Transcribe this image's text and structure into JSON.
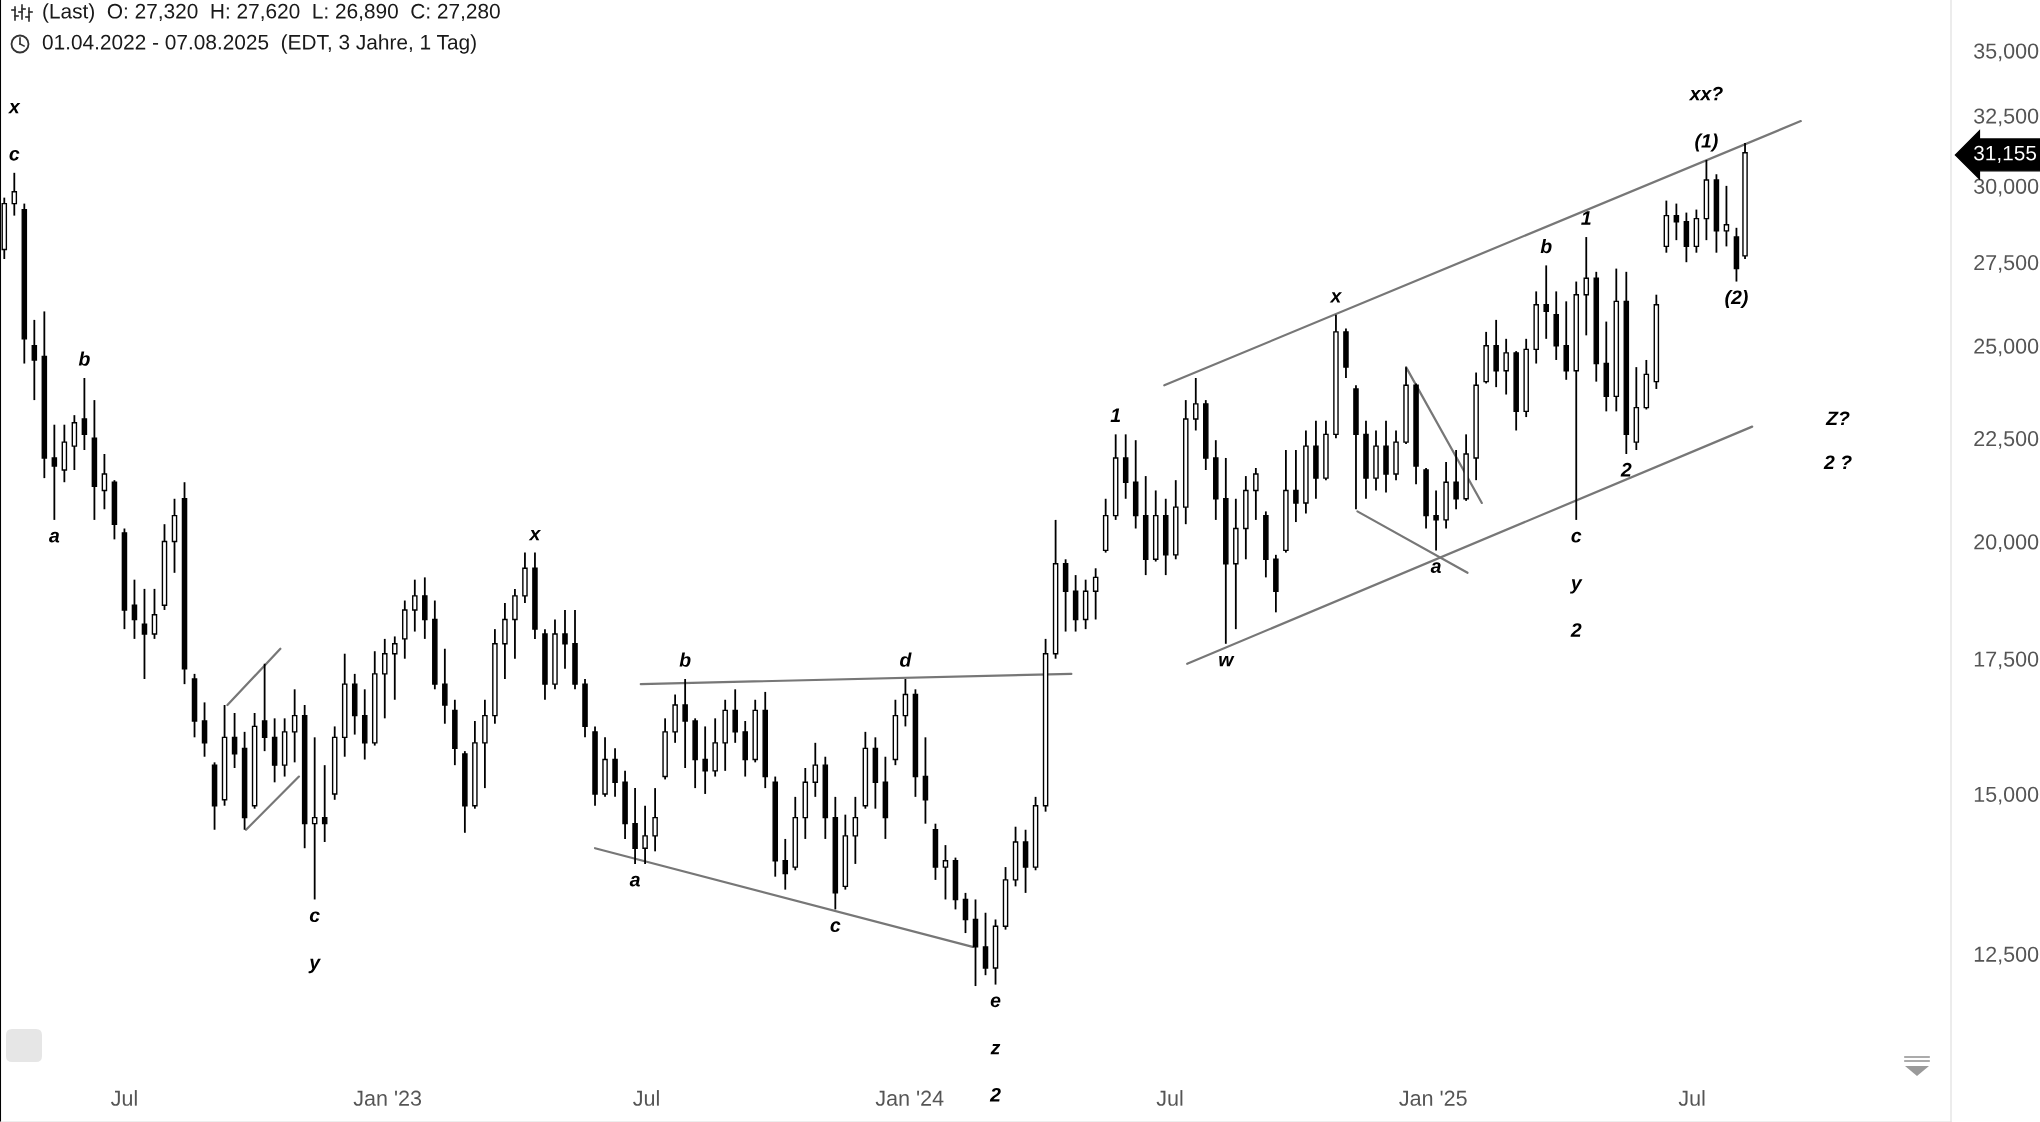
{
  "chart_data": {
    "type": "candlestick",
    "title": "(Last)  O: 27,320  H: 27,620  L: 26,890  C: 27,280",
    "subtitle": "01.04.2022 - 07.08.2025  (EDT, 3 Jahre, 1 Tag)",
    "color": "#000000",
    "log": true,
    "xlim": [
      "2022-04-05",
      "2025-12-29"
    ],
    "ylim": [
      10320,
      37080
    ],
    "xticks": [
      {
        "value": "2022-07-01",
        "label": "Jul"
      },
      {
        "value": "2023-01-01",
        "label": "Jan '23"
      },
      {
        "value": "2023-07-01",
        "label": "Jul"
      },
      {
        "value": "2024-01-01",
        "label": "Jan '24"
      },
      {
        "value": "2024-07-01",
        "label": "Jul"
      },
      {
        "value": "2025-01-01",
        "label": "Jan '25"
      },
      {
        "value": "2025-07-01",
        "label": "Jul"
      }
    ],
    "yticks": [
      {
        "value": 12500,
        "label": "12,500"
      },
      {
        "value": 15000,
        "label": "15,000"
      },
      {
        "value": 17500,
        "label": "17,500"
      },
      {
        "value": 20000,
        "label": "20,000"
      },
      {
        "value": 22500,
        "label": "22,500"
      },
      {
        "value": 25000,
        "label": "25,000"
      },
      {
        "value": 27500,
        "label": "27,500"
      },
      {
        "value": 30000,
        "label": "30,000"
      },
      {
        "value": 31155,
        "label": "31,155"
      },
      {
        "value": 32500,
        "label": "32,500"
      },
      {
        "value": 35000,
        "label": "35,000"
      }
    ],
    "x": [
      "2022-04-08",
      "2022-04-15",
      "2022-04-22",
      "2022-04-29",
      "2022-05-06",
      "2022-05-13",
      "2022-05-20",
      "2022-05-27",
      "2022-06-03",
      "2022-06-10",
      "2022-06-17",
      "2022-06-24",
      "2022-07-01",
      "2022-07-08",
      "2022-07-15",
      "2022-07-22",
      "2022-07-29",
      "2022-08-05",
      "2022-08-12",
      "2022-08-19",
      "2022-08-26",
      "2022-09-02",
      "2022-09-09",
      "2022-09-16",
      "2022-09-23",
      "2022-09-30",
      "2022-10-07",
      "2022-10-14",
      "2022-10-21",
      "2022-10-28",
      "2022-11-04",
      "2022-11-11",
      "2022-11-18",
      "2022-11-25",
      "2022-12-02",
      "2022-12-09",
      "2022-12-16",
      "2022-12-23",
      "2022-12-30",
      "2023-01-06",
      "2023-01-13",
      "2023-01-20",
      "2023-01-27",
      "2023-02-03",
      "2023-02-10",
      "2023-02-17",
      "2023-02-24",
      "2023-03-03",
      "2023-03-10",
      "2023-03-17",
      "2023-03-24",
      "2023-03-31",
      "2023-04-07",
      "2023-04-14",
      "2023-04-21",
      "2023-04-28",
      "2023-05-05",
      "2023-05-12",
      "2023-05-19",
      "2023-05-26",
      "2023-06-02",
      "2023-06-09",
      "2023-06-16",
      "2023-06-23",
      "2023-06-30",
      "2023-07-07",
      "2023-07-14",
      "2023-07-21",
      "2023-07-28",
      "2023-08-04",
      "2023-08-11",
      "2023-08-18",
      "2023-08-25",
      "2023-09-01",
      "2023-09-08",
      "2023-09-15",
      "2023-09-22",
      "2023-09-29",
      "2023-10-06",
      "2023-10-13",
      "2023-10-20",
      "2023-10-27",
      "2023-11-03",
      "2023-11-10",
      "2023-11-17",
      "2023-11-24",
      "2023-12-01",
      "2023-12-08",
      "2023-12-15",
      "2023-12-22",
      "2023-12-29",
      "2024-01-05",
      "2024-01-12",
      "2024-01-19",
      "2024-01-26",
      "2024-02-02",
      "2024-02-09",
      "2024-02-16",
      "2024-02-23",
      "2024-03-01",
      "2024-03-08",
      "2024-03-15",
      "2024-03-22",
      "2024-03-29",
      "2024-04-05",
      "2024-04-12",
      "2024-04-19",
      "2024-04-26",
      "2024-05-03",
      "2024-05-10",
      "2024-05-17",
      "2024-05-24",
      "2024-05-31",
      "2024-06-07",
      "2024-06-14",
      "2024-06-21",
      "2024-06-28",
      "2024-07-05",
      "2024-07-12",
      "2024-07-19",
      "2024-07-26",
      "2024-08-02",
      "2024-08-09",
      "2024-08-16",
      "2024-08-23",
      "2024-08-30",
      "2024-09-06",
      "2024-09-13",
      "2024-09-20",
      "2024-09-27",
      "2024-10-04",
      "2024-10-11",
      "2024-10-18",
      "2024-10-25",
      "2024-11-01",
      "2024-11-08",
      "2024-11-15",
      "2024-11-22",
      "2024-11-29",
      "2024-12-06",
      "2024-12-13",
      "2024-12-20",
      "2024-12-27",
      "2025-01-03",
      "2025-01-10",
      "2025-01-17",
      "2025-01-24",
      "2025-01-31",
      "2025-02-07",
      "2025-02-14",
      "2025-02-21",
      "2025-02-28",
      "2025-03-07",
      "2025-03-14",
      "2025-03-21",
      "2025-03-28",
      "2025-04-04",
      "2025-04-11",
      "2025-04-18",
      "2025-04-25",
      "2025-05-02",
      "2025-05-09",
      "2025-05-16",
      "2025-05-23",
      "2025-05-30",
      "2025-06-06",
      "2025-06-13",
      "2025-06-20",
      "2025-06-27",
      "2025-07-04",
      "2025-07-11",
      "2025-07-18",
      "2025-07-25",
      "2025-08-01",
      "2025-08-07"
    ],
    "ohlc": [
      [
        27900,
        29600,
        27600,
        29400
      ],
      [
        29400,
        30450,
        29000,
        29800
      ],
      [
        29200,
        29400,
        24500,
        25200
      ],
      [
        25000,
        25750,
        23500,
        24600
      ],
      [
        24700,
        26000,
        21500,
        22000
      ],
      [
        22000,
        22850,
        20500,
        21800
      ],
      [
        21700,
        22850,
        21400,
        22400
      ],
      [
        22300,
        23100,
        21700,
        22900
      ],
      [
        23000,
        24100,
        22200,
        22600
      ],
      [
        22500,
        23500,
        20500,
        21300
      ],
      [
        21200,
        22100,
        20750,
        21600
      ],
      [
        21400,
        21450,
        20050,
        20400
      ],
      [
        20200,
        20300,
        18100,
        18500
      ],
      [
        18600,
        19150,
        17900,
        18300
      ],
      [
        18200,
        18950,
        17100,
        18000
      ],
      [
        18000,
        18950,
        17900,
        18400
      ],
      [
        18600,
        20400,
        18500,
        20000
      ],
      [
        20000,
        21000,
        19300,
        20600
      ],
      [
        21000,
        21400,
        17000,
        17300
      ],
      [
        17100,
        17200,
        16000,
        16300
      ],
      [
        16300,
        16650,
        15650,
        15900
      ],
      [
        15500,
        15550,
        14400,
        14800
      ],
      [
        14900,
        16600,
        14800,
        16000
      ],
      [
        16000,
        16450,
        15450,
        15700
      ],
      [
        15800,
        16100,
        14400,
        14600
      ],
      [
        14800,
        16450,
        14750,
        16200
      ],
      [
        16300,
        17400,
        15750,
        16000
      ],
      [
        16000,
        16350,
        15200,
        15500
      ],
      [
        15500,
        16350,
        15300,
        16100
      ],
      [
        16100,
        16900,
        15550,
        16400
      ],
      [
        16400,
        16600,
        14100,
        14500
      ],
      [
        14500,
        16000,
        13300,
        14600
      ],
      [
        14600,
        15500,
        14200,
        14500
      ],
      [
        15000,
        16200,
        14900,
        16000
      ],
      [
        16000,
        17600,
        15650,
        17000
      ],
      [
        17000,
        17200,
        16050,
        16400
      ],
      [
        16400,
        16900,
        15600,
        15900
      ],
      [
        15900,
        17650,
        15850,
        17200
      ],
      [
        17200,
        17900,
        16350,
        17600
      ],
      [
        17600,
        17950,
        16700,
        17800
      ],
      [
        17900,
        18700,
        17500,
        18500
      ],
      [
        18500,
        19150,
        18050,
        18800
      ],
      [
        18800,
        19200,
        17900,
        18300
      ],
      [
        18300,
        18700,
        16900,
        17000
      ],
      [
        17000,
        17700,
        16250,
        16600
      ],
      [
        16500,
        16700,
        15500,
        15800
      ],
      [
        15700,
        15750,
        14350,
        14800
      ],
      [
        14800,
        16300,
        14750,
        15900
      ],
      [
        15900,
        16700,
        15100,
        16400
      ],
      [
        16400,
        18100,
        16250,
        17800
      ],
      [
        17800,
        18650,
        17100,
        18300
      ],
      [
        18300,
        18950,
        17500,
        18800
      ],
      [
        18800,
        19750,
        18650,
        19400
      ],
      [
        19400,
        19750,
        17900,
        18100
      ],
      [
        18000,
        18100,
        16700,
        17000
      ],
      [
        17000,
        18300,
        16900,
        18000
      ],
      [
        18000,
        18500,
        17300,
        17800
      ],
      [
        17800,
        18500,
        16900,
        17000
      ],
      [
        17000,
        17100,
        16000,
        16200
      ],
      [
        16100,
        16200,
        14800,
        15000
      ],
      [
        15000,
        16000,
        14950,
        15600
      ],
      [
        15600,
        15800,
        14950,
        15200
      ],
      [
        15200,
        15400,
        14250,
        14500
      ],
      [
        14500,
        15100,
        13850,
        14100
      ],
      [
        14100,
        14800,
        13850,
        14300
      ],
      [
        14300,
        15100,
        14050,
        14600
      ],
      [
        15300,
        16350,
        15250,
        16100
      ],
      [
        16100,
        16800,
        15900,
        16600
      ],
      [
        16600,
        17100,
        15450,
        16300
      ],
      [
        16300,
        16350,
        15100,
        15600
      ],
      [
        15600,
        16200,
        15000,
        15400
      ],
      [
        15400,
        16350,
        15300,
        15900
      ],
      [
        15900,
        16700,
        15400,
        16500
      ],
      [
        16500,
        16900,
        15900,
        16100
      ],
      [
        16100,
        16300,
        15300,
        15600
      ],
      [
        15600,
        16700,
        15550,
        16500
      ],
      [
        16500,
        16850,
        15100,
        15300
      ],
      [
        15200,
        15300,
        13650,
        13900
      ],
      [
        13900,
        14250,
        13450,
        13700
      ],
      [
        13800,
        14950,
        13750,
        14600
      ],
      [
        14600,
        15450,
        14250,
        15200
      ],
      [
        15200,
        15900,
        14950,
        15500
      ],
      [
        15500,
        15650,
        14250,
        14600
      ],
      [
        14600,
        14950,
        13150,
        13400
      ],
      [
        13500,
        14650,
        13450,
        14300
      ],
      [
        14300,
        14950,
        13850,
        14600
      ],
      [
        14800,
        16100,
        14750,
        15800
      ],
      [
        15800,
        16000,
        14750,
        15200
      ],
      [
        15200,
        15650,
        14250,
        14600
      ],
      [
        15600,
        16700,
        15500,
        16400
      ],
      [
        16400,
        17100,
        16200,
        16800
      ],
      [
        16800,
        16900,
        14950,
        15300
      ],
      [
        15300,
        16000,
        14500,
        14900
      ],
      [
        14400,
        14500,
        13600,
        13800
      ],
      [
        13800,
        14150,
        13300,
        13900
      ],
      [
        13900,
        13950,
        13150,
        13300
      ],
      [
        13300,
        13400,
        12800,
        13000
      ],
      [
        13000,
        13300,
        12050,
        12600
      ],
      [
        12600,
        13100,
        12200,
        12300
      ],
      [
        12300,
        13000,
        12070,
        12900
      ],
      [
        12900,
        13800,
        12850,
        13600
      ],
      [
        13600,
        14450,
        13500,
        14200
      ],
      [
        14200,
        14400,
        13400,
        13800
      ],
      [
        13800,
        14950,
        13750,
        14800
      ],
      [
        14800,
        17900,
        14700,
        17600
      ],
      [
        17600,
        20500,
        17500,
        19500
      ],
      [
        19500,
        19600,
        18050,
        18900
      ],
      [
        18900,
        19250,
        18050,
        18300
      ],
      [
        18300,
        19150,
        18100,
        18900
      ],
      [
        18900,
        19400,
        18300,
        19200
      ],
      [
        19800,
        21000,
        19750,
        20600
      ],
      [
        20600,
        22600,
        20500,
        22000
      ],
      [
        22000,
        22600,
        21000,
        21400
      ],
      [
        21400,
        22450,
        20300,
        20600
      ],
      [
        20600,
        21550,
        19250,
        19600
      ],
      [
        19600,
        21200,
        19550,
        20600
      ],
      [
        20600,
        21000,
        19250,
        19700
      ],
      [
        19700,
        21450,
        19600,
        20800
      ],
      [
        20800,
        23500,
        20400,
        23000
      ],
      [
        23000,
        24100,
        22700,
        23400
      ],
      [
        23400,
        23500,
        21700,
        22000
      ],
      [
        22000,
        22450,
        20500,
        21000
      ],
      [
        21000,
        22000,
        17800,
        19500
      ],
      [
        19500,
        21000,
        18100,
        20300
      ],
      [
        20300,
        21550,
        19600,
        21200
      ],
      [
        21200,
        21750,
        20500,
        21600
      ],
      [
        20600,
        20700,
        19200,
        19600
      ],
      [
        19600,
        19700,
        18450,
        18900
      ],
      [
        19800,
        22200,
        19750,
        21200
      ],
      [
        21200,
        22200,
        20450,
        20900
      ],
      [
        20900,
        22700,
        20650,
        22300
      ],
      [
        22300,
        22950,
        21000,
        21500
      ],
      [
        21500,
        22950,
        21450,
        22600
      ],
      [
        22600,
        25900,
        22500,
        25400
      ],
      [
        25400,
        25500,
        24100,
        24400
      ],
      [
        23800,
        23900,
        20750,
        22600
      ],
      [
        22600,
        22950,
        21000,
        21500
      ],
      [
        21500,
        22700,
        21200,
        22300
      ],
      [
        22300,
        22950,
        21150,
        21600
      ],
      [
        21600,
        22700,
        21450,
        22400
      ],
      [
        22400,
        24400,
        22350,
        23900
      ],
      [
        23900,
        23950,
        21350,
        21800
      ],
      [
        21700,
        21750,
        20300,
        20600
      ],
      [
        20600,
        21200,
        19800,
        20500
      ],
      [
        20500,
        21900,
        20300,
        21400
      ],
      [
        21400,
        22200,
        20750,
        21000
      ],
      [
        21000,
        22600,
        20950,
        22100
      ],
      [
        22000,
        24250,
        21450,
        23900
      ],
      [
        24000,
        25400,
        23950,
        25000
      ],
      [
        25000,
        25750,
        23850,
        24300
      ],
      [
        24300,
        25200,
        23650,
        24800
      ],
      [
        24800,
        24850,
        22700,
        23200
      ],
      [
        23200,
        25200,
        23050,
        24900
      ],
      [
        24900,
        26600,
        24500,
        26200
      ],
      [
        26200,
        27400,
        25200,
        26000
      ],
      [
        25900,
        26600,
        24600,
        25000
      ],
      [
        25000,
        26300,
        24050,
        24300
      ],
      [
        24300,
        26900,
        20500,
        26500
      ],
      [
        26500,
        28300,
        25300,
        27000
      ],
      [
        27000,
        27200,
        24000,
        24500
      ],
      [
        24500,
        25700,
        23200,
        23600
      ],
      [
        23600,
        27300,
        23200,
        26300
      ],
      [
        26300,
        27200,
        22100,
        22600
      ],
      [
        22400,
        24400,
        22200,
        23300
      ],
      [
        23300,
        24600,
        23250,
        24200
      ],
      [
        24000,
        26500,
        23800,
        26200
      ],
      [
        28000,
        29500,
        27800,
        29000
      ],
      [
        29000,
        29400,
        28200,
        28800
      ],
      [
        28800,
        29100,
        27500,
        28000
      ],
      [
        28000,
        29200,
        27800,
        28900
      ],
      [
        28900,
        30900,
        28200,
        30200
      ],
      [
        30200,
        30400,
        27800,
        28500
      ],
      [
        28500,
        30000,
        28000,
        28700
      ],
      [
        28300,
        28600,
        26900,
        27300
      ],
      [
        27700,
        31500,
        27600,
        31155
      ]
    ],
    "series": [
      {
        "type": "line",
        "color": "#777777",
        "x": [
          "2022-09-11",
          "2022-10-18"
        ],
        "values": [
          16600,
          17700
        ]
      },
      {
        "type": "line",
        "color": "#777777",
        "x": [
          "2022-09-24",
          "2022-10-31"
        ],
        "values": [
          14400,
          15300
        ]
      },
      {
        "type": "line",
        "color": "#777777",
        "x": [
          "2023-05-26",
          "2024-02-14"
        ],
        "values": [
          14100,
          12600
        ]
      },
      {
        "type": "line",
        "color": "#777777",
        "x": [
          "2023-06-27",
          "2024-04-23"
        ],
        "values": [
          17000,
          17200
        ]
      },
      {
        "type": "line",
        "color": "#777777",
        "x": [
          "2024-06-27",
          "2025-09-15"
        ],
        "values": [
          23900,
          32300
        ]
      },
      {
        "type": "line",
        "color": "#777777",
        "x": [
          "2024-07-13",
          "2025-08-12"
        ],
        "values": [
          17400,
          22800
        ]
      },
      {
        "type": "line",
        "color": "#777777",
        "x": [
          "2024-11-09",
          "2025-01-25"
        ],
        "values": [
          20700,
          19300
        ]
      },
      {
        "type": "line",
        "color": "#777777",
        "x": [
          "2024-12-13",
          "2025-02-04"
        ],
        "values": [
          24400,
          20900
        ]
      }
    ],
    "annotations": [
      "Z?",
      "2 ?",
      {
        "text": "c",
        "x": "2022-04-15",
        "y": 30450
      },
      "x",
      {
        "text": "b",
        "x": "2022-06-03",
        "y": 24100
      },
      {
        "text": "a",
        "x": "2022-05-13",
        "y": 20500
      },
      {
        "text": "c",
        "x": "2022-11-11",
        "y": 13300
      },
      "y",
      {
        "text": "x",
        "x": "2023-04-14",
        "y": 19750
      },
      {
        "text": "b",
        "x": "2023-07-28",
        "y": 17100
      },
      {
        "text": "a",
        "x": "2023-06-23",
        "y": 13850
      },
      {
        "text": "d",
        "x": "2023-12-29",
        "y": 17100
      },
      {
        "text": "c",
        "x": "2023-11-10",
        "y": 13150
      },
      {
        "text": "e",
        "x": "2024-03-01",
        "y": 12070
      },
      "z",
      "2",
      {
        "text": "1",
        "x": "2024-05-24",
        "y": 22600
      },
      {
        "text": "w",
        "x": "2024-08-09",
        "y": 17800
      },
      {
        "text": "x",
        "x": "2024-10-25",
        "y": 25900
      },
      {
        "text": "a",
        "x": "2025-01-03",
        "y": 19800
      },
      {
        "text": "b",
        "x": "2025-03-21",
        "y": 27400
      },
      {
        "text": "1",
        "x": "2025-04-18",
        "y": 28300
      },
      {
        "text": "c",
        "x": "2025-04-11",
        "y": 20500
      },
      "y",
      "2",
      {
        "text": "2",
        "x": "2025-05-16",
        "y": 22100
      },
      {
        "text": "(1)",
        "x": "2025-07-11",
        "y": 30900
      },
      "xx?",
      {
        "text": "(2)",
        "x": "2025-08-01",
        "y": 26900
      }
    ]
  }
}
